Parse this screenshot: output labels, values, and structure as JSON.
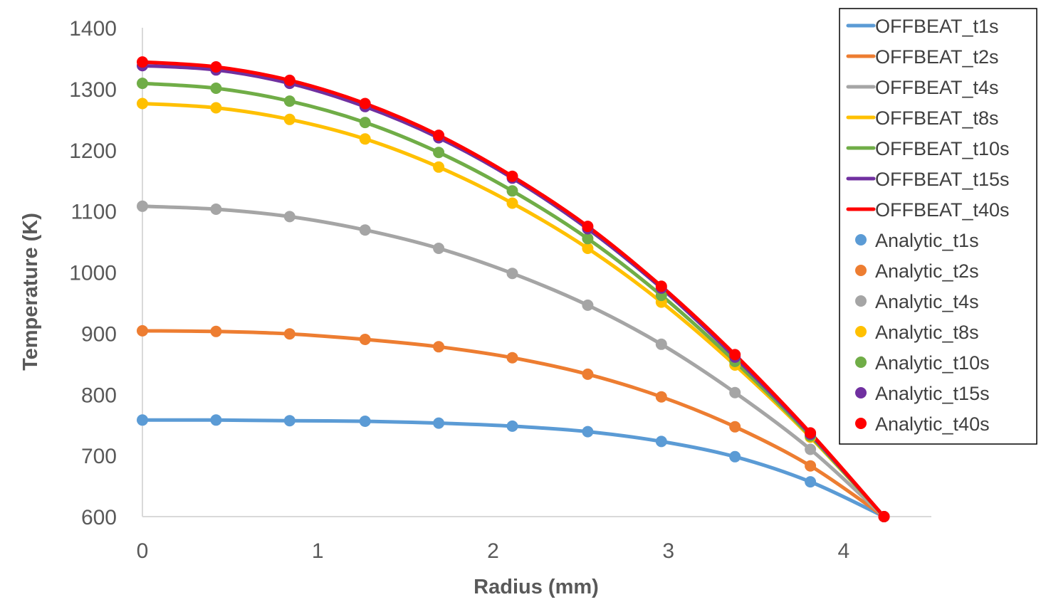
{
  "chart_data": {
    "type": "line",
    "title": "",
    "xlabel": "Radius (mm)",
    "ylabel": "Temperature (K)",
    "xlim": [
      0,
      4.5
    ],
    "ylim": [
      600,
      1400
    ],
    "x_ticks": [
      "0",
      "1",
      "2",
      "3",
      "4"
    ],
    "y_ticks": [
      "600",
      "700",
      "800",
      "900",
      "1000",
      "1100",
      "1200",
      "1300",
      "1400"
    ],
    "grid": false,
    "legend_position": "right",
    "x": [
      0,
      0.42,
      0.84,
      1.27,
      1.69,
      2.11,
      2.54,
      2.96,
      3.38,
      3.81,
      4.23
    ],
    "series": [
      {
        "name": "OFFBEAT_t1s",
        "color": "#5B9BD5",
        "values": [
          758,
          758,
          757,
          756,
          753,
          748,
          739,
          723,
          698,
          657,
          600
        ]
      },
      {
        "name": "OFFBEAT_t2s",
        "color": "#ED7D31",
        "values": [
          904,
          903,
          899,
          890,
          878,
          860,
          833,
          796,
          747,
          683,
          600
        ]
      },
      {
        "name": "OFFBEAT_t4s",
        "color": "#A5A5A5",
        "values": [
          1108,
          1103,
          1091,
          1069,
          1039,
          998,
          946,
          882,
          803,
          710,
          600
        ]
      },
      {
        "name": "OFFBEAT_t8s",
        "color": "#FFC000",
        "values": [
          1276,
          1269,
          1250,
          1218,
          1172,
          1113,
          1039,
          951,
          848,
          730,
          600
        ]
      },
      {
        "name": "OFFBEAT_t10s",
        "color": "#70AD47",
        "values": [
          1309,
          1301,
          1280,
          1245,
          1196,
          1133,
          1055,
          962,
          854,
          732,
          600
        ]
      },
      {
        "name": "OFFBEAT_t15s",
        "color": "#7030A0",
        "values": [
          1338,
          1331,
          1309,
          1271,
          1220,
          1154,
          1071,
          974,
          861,
          735,
          600
        ]
      },
      {
        "name": "OFFBEAT_t40s",
        "color": "#FF0000",
        "values": [
          1344,
          1336,
          1314,
          1276,
          1224,
          1157,
          1075,
          977,
          865,
          737,
          600
        ]
      },
      {
        "name": "Analytic_t1s",
        "color": "#5B9BD5",
        "values": [
          758,
          758,
          757,
          756,
          753,
          748,
          739,
          723,
          698,
          657,
          600
        ]
      },
      {
        "name": "Analytic_t2s",
        "color": "#ED7D31",
        "values": [
          904,
          903,
          899,
          890,
          878,
          860,
          833,
          796,
          747,
          683,
          600
        ]
      },
      {
        "name": "Analytic_t4s",
        "color": "#A5A5A5",
        "values": [
          1108,
          1103,
          1091,
          1069,
          1039,
          998,
          946,
          882,
          803,
          710,
          600
        ]
      },
      {
        "name": "Analytic_t8s",
        "color": "#FFC000",
        "values": [
          1276,
          1269,
          1250,
          1218,
          1172,
          1113,
          1039,
          951,
          848,
          730,
          600
        ]
      },
      {
        "name": "Analytic_t10s",
        "color": "#70AD47",
        "values": [
          1309,
          1301,
          1280,
          1245,
          1196,
          1133,
          1055,
          962,
          854,
          732,
          600
        ]
      },
      {
        "name": "Analytic_t15s",
        "color": "#7030A0",
        "values": [
          1338,
          1331,
          1309,
          1271,
          1220,
          1154,
          1071,
          974,
          861,
          735,
          600
        ]
      },
      {
        "name": "Analytic_t40s",
        "color": "#FF0000",
        "values": [
          1344,
          1336,
          1314,
          1276,
          1224,
          1157,
          1075,
          977,
          865,
          737,
          600
        ]
      }
    ]
  }
}
